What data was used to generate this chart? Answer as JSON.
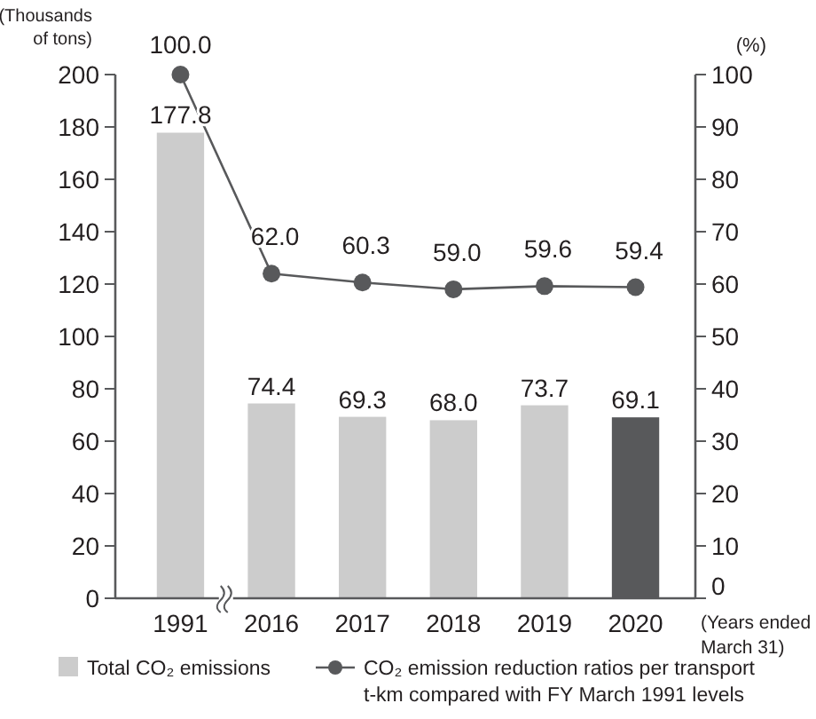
{
  "chart_data": {
    "type": "bar",
    "categories": [
      "1991",
      "2016",
      "2017",
      "2018",
      "2019",
      "2020"
    ],
    "ylabel": "(Thousands of tons)",
    "y2label": "(%)",
    "xlabel": "(Years ended March 31)",
    "series": [
      {
        "name": "Total CO₂ emissions",
        "color": "#cccccc",
        "colors": [
          "#cccccc",
          "#cccccc",
          "#cccccc",
          "#cccccc",
          "#cccccc",
          "#58595b"
        ],
        "values": [
          177.8,
          74.4,
          69.3,
          68.0,
          73.7,
          69.1
        ],
        "value_labels": [
          "177.8",
          "74.4",
          "69.3",
          "68.0",
          "73.7",
          "69.1"
        ]
      },
      {
        "name": "CO₂ emission reduction ratios per transport t-km compared with FY March 1991 levels",
        "type": "line",
        "axis": "y2",
        "color": "#58595b",
        "values": [
          100.0,
          62.0,
          60.3,
          59.0,
          59.6,
          59.4
        ],
        "value_labels": [
          "100.0",
          "62.0",
          "60.3",
          "59.0",
          "59.6",
          "59.4"
        ]
      }
    ],
    "ylim": [
      0,
      200
    ],
    "yticks": [
      0,
      20,
      40,
      60,
      80,
      100,
      120,
      140,
      160,
      180,
      200
    ],
    "y2lim": [
      0,
      100
    ],
    "y2ticks": [
      0,
      10,
      20,
      30,
      40,
      50,
      60,
      70,
      80,
      90,
      100
    ],
    "legend": "bottom",
    "marker": "circle",
    "line_style": "solid",
    "grid": false
  }
}
